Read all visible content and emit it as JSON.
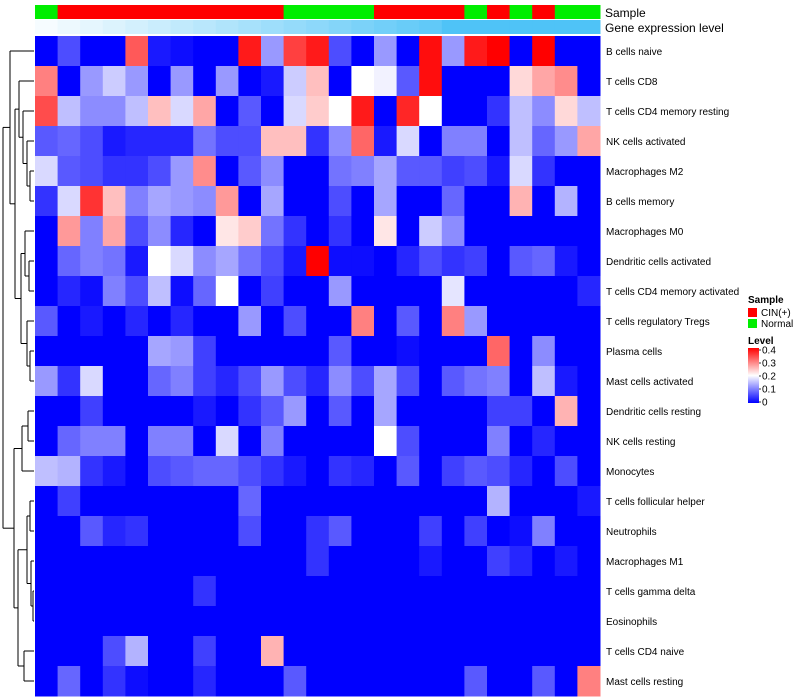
{
  "chart_data": {
    "type": "heatmap",
    "title": "",
    "annotation_tracks": [
      "Sample",
      "Gene expression level"
    ],
    "sample_groups": [
      "Normal",
      "CIN",
      "CIN",
      "CIN",
      "CIN",
      "CIN",
      "CIN",
      "CIN",
      "CIN",
      "CIN",
      "CIN",
      "Normal",
      "Normal",
      "Normal",
      "Normal",
      "CIN",
      "CIN",
      "CIN",
      "CIN",
      "Normal",
      "CIN",
      "Normal",
      "CIN",
      "Normal",
      "Normal"
    ],
    "expression_level": [
      0.05,
      0.1,
      0.15,
      0.2,
      0.25,
      0.3,
      0.35,
      0.4,
      0.45,
      0.5,
      0.55,
      0.6,
      0.65,
      0.7,
      0.75,
      0.8,
      0.85,
      0.9,
      1.0,
      1.0,
      1.0,
      1.0,
      1.0,
      1.0,
      1.0
    ],
    "rows": [
      "B cells naive",
      "T cells CD8",
      "T cells CD4 memory resting",
      "NK cells activated",
      "Macrophages M2",
      "B cells memory",
      "Macrophages M0",
      "Dendritic cells activated",
      "T cells CD4 memory activated",
      "T cells regulatory  Tregs",
      "Plasma cells",
      "Mast cells activated",
      "Dendritic cells resting",
      "NK cells resting",
      "Monocytes",
      "T cells follicular helper",
      "Neutrophils",
      "Macrophages M1",
      "T cells gamma delta",
      "Eosinophils",
      "T cells CD4 naive",
      "Mast cells resting"
    ],
    "values": [
      [
        0.0,
        0.06,
        0.0,
        0.0,
        0.33,
        0.02,
        0.01,
        0.0,
        0.0,
        0.38,
        0.12,
        0.35,
        0.38,
        0.06,
        0.0,
        0.12,
        0.0,
        0.39,
        0.12,
        0.38,
        0.4,
        0.0,
        0.4,
        0.0,
        0.0
      ],
      [
        0.3,
        0.0,
        0.12,
        0.16,
        0.12,
        0.0,
        0.12,
        0.0,
        0.12,
        0.0,
        0.02,
        0.16,
        0.25,
        0.0,
        0.2,
        0.19,
        0.07,
        0.39,
        0.0,
        0.0,
        0.0,
        0.23,
        0.27,
        0.29,
        0.0
      ],
      [
        0.34,
        0.15,
        0.11,
        0.11,
        0.15,
        0.25,
        0.17,
        0.27,
        0.0,
        0.07,
        0.0,
        0.17,
        0.24,
        0.2,
        0.38,
        0.0,
        0.37,
        0.2,
        0.0,
        0.0,
        0.04,
        0.15,
        0.11,
        0.23,
        0.15
      ],
      [
        0.07,
        0.08,
        0.06,
        0.02,
        0.03,
        0.03,
        0.03,
        0.09,
        0.06,
        0.06,
        0.25,
        0.25,
        0.04,
        0.11,
        0.32,
        0.02,
        0.17,
        0.0,
        0.1,
        0.1,
        0.0,
        0.15,
        0.08,
        0.12,
        0.27
      ],
      [
        0.17,
        0.07,
        0.06,
        0.04,
        0.04,
        0.06,
        0.12,
        0.29,
        0.0,
        0.07,
        0.11,
        0.0,
        0.0,
        0.09,
        0.1,
        0.13,
        0.07,
        0.07,
        0.05,
        0.06,
        0.02,
        0.17,
        0.04,
        0.0,
        0.0
      ],
      [
        0.04,
        0.17,
        0.36,
        0.25,
        0.1,
        0.13,
        0.12,
        0.11,
        0.28,
        0.0,
        0.13,
        0.0,
        0.0,
        0.06,
        0.0,
        0.13,
        0.0,
        0.0,
        0.08,
        0.0,
        0.0,
        0.26,
        0.0,
        0.14,
        0.0
      ],
      [
        0.0,
        0.28,
        0.1,
        0.27,
        0.06,
        0.11,
        0.03,
        0.0,
        0.22,
        0.24,
        0.09,
        0.04,
        0.0,
        0.04,
        0.0,
        0.22,
        0.0,
        0.16,
        0.11,
        0.0,
        0.0,
        0.0,
        0.0,
        0.0,
        0.0
      ],
      [
        0.0,
        0.08,
        0.1,
        0.09,
        0.02,
        0.2,
        0.17,
        0.11,
        0.13,
        0.09,
        0.06,
        0.02,
        0.41,
        0.01,
        0.01,
        0.0,
        0.03,
        0.06,
        0.04,
        0.05,
        0.0,
        0.07,
        0.08,
        0.02,
        0.0
      ],
      [
        0.0,
        0.03,
        0.01,
        0.1,
        0.06,
        0.15,
        0.01,
        0.08,
        0.2,
        0.0,
        0.05,
        0.0,
        0.0,
        0.12,
        0.0,
        0.0,
        0.0,
        0.0,
        0.18,
        0.0,
        0.0,
        0.0,
        0.0,
        0.0,
        0.03
      ],
      [
        0.07,
        0.0,
        0.02,
        0.0,
        0.03,
        0.0,
        0.03,
        0.0,
        0.0,
        0.12,
        0.0,
        0.06,
        0.0,
        0.0,
        0.3,
        0.0,
        0.07,
        0.0,
        0.3,
        0.12,
        0.0,
        0.0,
        0.0,
        0.0,
        0.0
      ],
      [
        0.0,
        0.0,
        0.0,
        0.0,
        0.0,
        0.13,
        0.12,
        0.05,
        0.0,
        0.0,
        0.0,
        0.0,
        0.0,
        0.07,
        0.0,
        0.0,
        0.01,
        0.0,
        0.0,
        0.0,
        0.32,
        0.0,
        0.11,
        0.0,
        0.0
      ],
      [
        0.12,
        0.04,
        0.17,
        0.0,
        0.0,
        0.08,
        0.1,
        0.05,
        0.03,
        0.06,
        0.12,
        0.06,
        0.03,
        0.11,
        0.06,
        0.13,
        0.06,
        0.0,
        0.07,
        0.09,
        0.1,
        0.0,
        0.15,
        0.02,
        0.0
      ],
      [
        0.0,
        0.0,
        0.05,
        0.0,
        0.0,
        0.0,
        0.0,
        0.02,
        0.0,
        0.04,
        0.07,
        0.12,
        0.0,
        0.07,
        0.0,
        0.13,
        0.0,
        0.0,
        0.0,
        0.0,
        0.05,
        0.05,
        0.0,
        0.26,
        0.0
      ],
      [
        0.0,
        0.08,
        0.1,
        0.1,
        0.0,
        0.1,
        0.1,
        0.0,
        0.17,
        0.0,
        0.1,
        0.0,
        0.0,
        0.0,
        0.0,
        0.2,
        0.06,
        0.0,
        0.0,
        0.0,
        0.1,
        0.0,
        0.03,
        0.0,
        0.0
      ],
      [
        0.15,
        0.14,
        0.04,
        0.02,
        0.0,
        0.06,
        0.07,
        0.08,
        0.08,
        0.06,
        0.04,
        0.02,
        0.0,
        0.04,
        0.03,
        0.0,
        0.07,
        0.0,
        0.05,
        0.07,
        0.06,
        0.03,
        0.0,
        0.06,
        0.0
      ],
      [
        0.0,
        0.05,
        0.0,
        0.0,
        0.0,
        0.0,
        0.0,
        0.0,
        0.0,
        0.08,
        0.0,
        0.0,
        0.0,
        0.0,
        0.0,
        0.0,
        0.0,
        0.0,
        0.0,
        0.0,
        0.14,
        0.0,
        0.0,
        0.0,
        0.02
      ],
      [
        0.0,
        0.0,
        0.07,
        0.03,
        0.04,
        0.0,
        0.0,
        0.0,
        0.0,
        0.06,
        0.0,
        0.0,
        0.04,
        0.07,
        0.0,
        0.0,
        0.0,
        0.05,
        0.0,
        0.05,
        0.0,
        0.01,
        0.1,
        0.0,
        0.0
      ],
      [
        0.0,
        0.0,
        0.0,
        0.0,
        0.0,
        0.0,
        0.0,
        0.0,
        0.0,
        0.0,
        0.0,
        0.0,
        0.04,
        0.0,
        0.0,
        0.0,
        0.0,
        0.02,
        0.0,
        0.0,
        0.05,
        0.03,
        0.0,
        0.02,
        0.0
      ],
      [
        0.0,
        0.0,
        0.0,
        0.0,
        0.0,
        0.0,
        0.0,
        0.04,
        0.0,
        0.0,
        0.0,
        0.0,
        0.0,
        0.0,
        0.0,
        0.0,
        0.0,
        0.0,
        0.0,
        0.0,
        0.0,
        0.0,
        0.0,
        0.0,
        0.0
      ],
      [
        0.0,
        0.0,
        0.0,
        0.0,
        0.0,
        0.0,
        0.0,
        0.0,
        0.0,
        0.0,
        0.0,
        0.0,
        0.0,
        0.0,
        0.0,
        0.0,
        0.0,
        0.0,
        0.0,
        0.0,
        0.0,
        0.0,
        0.0,
        0.0,
        0.0
      ],
      [
        0.0,
        0.0,
        0.0,
        0.06,
        0.14,
        0.0,
        0.0,
        0.05,
        0.0,
        0.0,
        0.26,
        0.0,
        0.0,
        0.0,
        0.0,
        0.0,
        0.0,
        0.0,
        0.0,
        0.0,
        0.0,
        0.0,
        0.0,
        0.0,
        0.0
      ],
      [
        0.0,
        0.08,
        0.0,
        0.04,
        0.01,
        0.0,
        0.0,
        0.03,
        0.0,
        0.0,
        0.0,
        0.07,
        0.0,
        0.0,
        0.0,
        0.0,
        0.0,
        0.0,
        0.0,
        0.07,
        0.0,
        0.0,
        0.07,
        0.0,
        0.3
      ]
    ],
    "legend": {
      "sample_title": "Sample",
      "sample_items": [
        {
          "label": "CIN(+)",
          "group": "CIN",
          "color": "#ff0000"
        },
        {
          "label": "Normal",
          "group": "Normal",
          "color": "#00ee00"
        }
      ],
      "level_title": "Level",
      "level_ticks": [
        "0.4",
        "0.3",
        "0.2",
        "0.1",
        "0"
      ],
      "level_range": [
        0,
        0.4
      ]
    },
    "colors": {
      "low": "#0000ff",
      "mid": "#ffffff",
      "high": "#ff0000",
      "annotation_low": "#ffffff",
      "annotation_high": "#4fc3f7"
    }
  }
}
